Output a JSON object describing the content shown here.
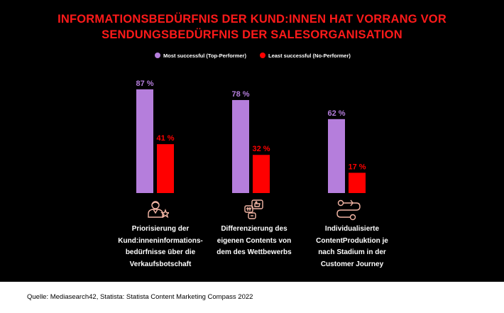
{
  "title_lines": [
    "INFORMATIONSBEDÜRFNIS DER KUND:INNEN HAT VORRANG VOR",
    "SENDUNGSBEDÜRFNIS DER SALESORGANISATION"
  ],
  "colors": {
    "background": "#000000",
    "title": "#ff1a1a",
    "top": "#b57edc",
    "least": "#ff0000",
    "icon": "#f3b6a5"
  },
  "chart_data": {
    "type": "bar",
    "categories": [
      "Priorisierung der Kund:inneninformations-bedürfnisse über die Verkaufsbotschaft",
      "Differenzierung des eigenen Contents von dem des Wettbewerbs",
      "Individualisierte ContentProduktion je nach Stadium in der Customer Journey"
    ],
    "category_lines": [
      [
        "Priorisierung der",
        "Kund:inneninformations-",
        "bedürfnisse über die",
        "Verkaufsbotschaft"
      ],
      [
        "Differenzierung des",
        "eigenen Contents von",
        "dem des Wettbewerbs"
      ],
      [
        "Individualisierte",
        "ContentProduktion je",
        "nach Stadium in der",
        "Customer Journey"
      ]
    ],
    "category_icons": [
      "person-star-icon",
      "chat-thumbs-up-icon",
      "journey-path-icon"
    ],
    "series": [
      {
        "name": "Most successful (Top-Performer)",
        "color": "#b57edc",
        "values": [
          87,
          78,
          62
        ],
        "labels": [
          "87 %",
          "78 %",
          "62 %"
        ]
      },
      {
        "name": "Least successful (No-Performer)",
        "color": "#ff0000",
        "values": [
          41,
          32,
          17
        ],
        "labels": [
          "41 %",
          "32 %",
          "17 %"
        ]
      }
    ],
    "ylim": [
      0,
      100
    ],
    "grid": false,
    "legend_position": "top-center",
    "value_unit": "%"
  },
  "source": "Quelle: Mediasearch42, Statista: Statista Content Marketing Compass 2022"
}
